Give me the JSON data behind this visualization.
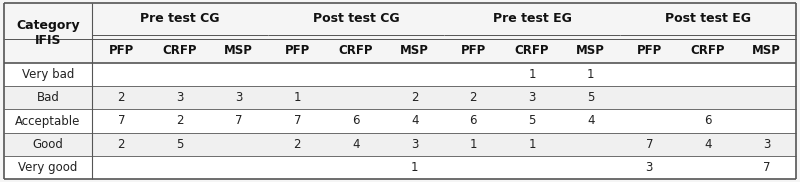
{
  "col_groups": [
    {
      "label": "Pre test CG",
      "span": [
        1,
        3
      ]
    },
    {
      "label": "Post test CG",
      "span": [
        4,
        6
      ]
    },
    {
      "label": "Pre test EG",
      "span": [
        7,
        9
      ]
    },
    {
      "label": "Post test EG",
      "span": [
        10,
        12
      ]
    }
  ],
  "category_label": "Category\nIFIS",
  "subheaders": [
    "PFP",
    "CRFP",
    "MSP",
    "PFP",
    "CRFP",
    "MSP",
    "PFP",
    "CRFP",
    "MSP",
    "PFP",
    "CRFP",
    "MSP"
  ],
  "rows": [
    {
      "label": "Very bad",
      "values": [
        "",
        "",
        "",
        "",
        "",
        "",
        "",
        "1",
        "1",
        "",
        "",
        ""
      ]
    },
    {
      "label": "Bad",
      "values": [
        "2",
        "3",
        "3",
        "1",
        "",
        "2",
        "2",
        "3",
        "5",
        "",
        "",
        ""
      ]
    },
    {
      "label": "Acceptable",
      "values": [
        "7",
        "2",
        "7",
        "7",
        "6",
        "4",
        "6",
        "5",
        "4",
        "",
        "6",
        ""
      ]
    },
    {
      "label": "Good",
      "values": [
        "2",
        "5",
        "",
        "2",
        "4",
        "3",
        "1",
        "1",
        "",
        "7",
        "4",
        "3"
      ]
    },
    {
      "label": "Very good",
      "values": [
        "",
        "",
        "",
        "",
        "",
        "1",
        "",
        "",
        "",
        "3",
        "",
        "7"
      ]
    }
  ],
  "bg_color": "#f5f5f5",
  "white_bg": "#ffffff",
  "line_color": "#555555",
  "text_color": "#222222",
  "header_text_color": "#111111",
  "font_size": 8.5,
  "header_font_size": 9.0,
  "subheader_font_size": 8.5
}
